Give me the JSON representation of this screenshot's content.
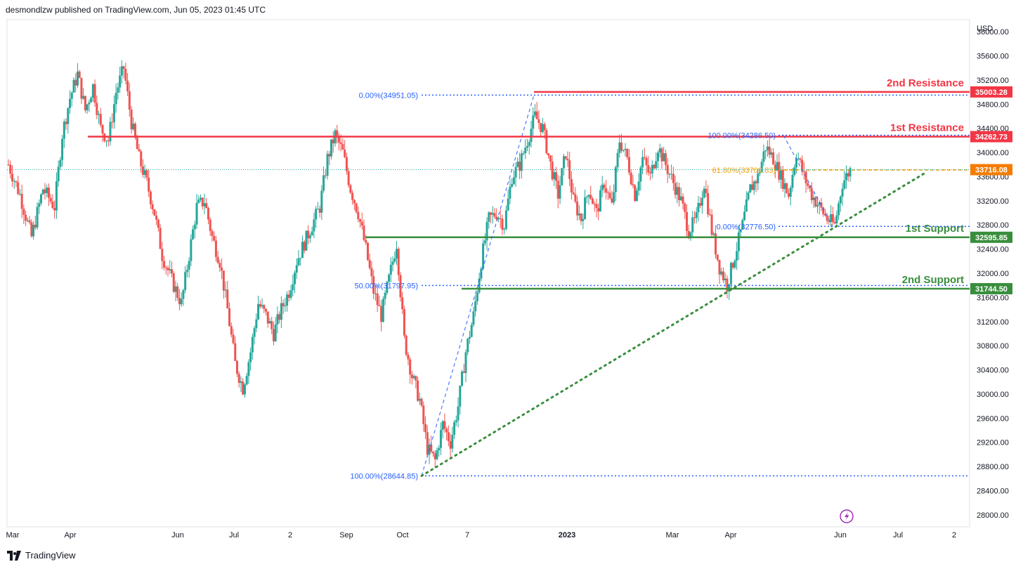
{
  "header": {
    "publisher": "desmondlzw published on TradingView.com, Jun 05, 2023 01:45 UTC"
  },
  "footer": {
    "brand": "TradingView"
  },
  "colors": {
    "up": "#26a69a",
    "down": "#ef5350",
    "resistance": "#f23645",
    "support": "#388e3c",
    "fib": "#2962ff",
    "fib_gold": "#f0a30a",
    "last_price": "#f57c00"
  },
  "chart_data": {
    "type": "candlestick",
    "currency": "USD",
    "y_range": [
      27800,
      36200
    ],
    "y_ticks": [
      36000,
      35600,
      35200,
      34800,
      34400,
      34000,
      33600,
      33200,
      32800,
      32400,
      32000,
      31600,
      31200,
      30800,
      30400,
      30000,
      29600,
      29200,
      28800,
      28400,
      28000
    ],
    "x_ticks": [
      "Mar",
      "Apr",
      "Jun",
      "Jul",
      "2",
      "Sep",
      "Oct",
      "7",
      "2023",
      "Mar",
      "Apr",
      "Jun",
      "Jul",
      "2"
    ],
    "levels": [
      {
        "label": "2nd Resistance",
        "value": 35003.28,
        "tag": "35003.28",
        "kind": "resistance"
      },
      {
        "label": "1st Resistance",
        "value": 34262.73,
        "tag": "34262.73",
        "kind": "resistance"
      },
      {
        "label": "1st Support",
        "value": 32595.85,
        "tag": "32595.85",
        "kind": "support"
      },
      {
        "label": "2nd Support",
        "value": 31744.5,
        "tag": "31744.50",
        "kind": "support"
      }
    ],
    "last_price": {
      "value": 33716.08,
      "tag": "33716.08"
    },
    "fib_labels": [
      {
        "text": "0.00%(34951.05)",
        "value": 34951.05
      },
      {
        "text": "50.00%(31797.95)",
        "value": 31797.95
      },
      {
        "text": "100.00%(28644.85)",
        "value": 28644.85
      },
      {
        "text": "100.00%(34286.50)",
        "value": 34286.5
      },
      {
        "text": "61.80%(33709.83)",
        "value": 33709.83
      },
      {
        "text": "0.00%(32776.50)",
        "value": 32776.5
      }
    ],
    "price_path": [
      [
        0,
        33800
      ],
      [
        3,
        33300
      ],
      [
        6,
        32600
      ],
      [
        9,
        33400
      ],
      [
        12,
        33100
      ],
      [
        14,
        34300
      ],
      [
        16,
        34900
      ],
      [
        18,
        35300
      ],
      [
        20,
        34700
      ],
      [
        22,
        35100
      ],
      [
        24,
        34400
      ],
      [
        26,
        34200
      ],
      [
        28,
        35000
      ],
      [
        30,
        35400
      ],
      [
        32,
        34500
      ],
      [
        34,
        33900
      ],
      [
        36,
        33500
      ],
      [
        38,
        33000
      ],
      [
        40,
        32300
      ],
      [
        43,
        31800
      ],
      [
        45,
        31500
      ],
      [
        47,
        32300
      ],
      [
        49,
        33100
      ],
      [
        51,
        33200
      ],
      [
        53,
        32600
      ],
      [
        55,
        32200
      ],
      [
        57,
        31400
      ],
      [
        59,
        30500
      ],
      [
        61,
        30100
      ],
      [
        63,
        30700
      ],
      [
        65,
        31500
      ],
      [
        67,
        31300
      ],
      [
        69,
        31000
      ],
      [
        71,
        31400
      ],
      [
        73,
        31700
      ],
      [
        75,
        32200
      ],
      [
        77,
        32500
      ],
      [
        79,
        32800
      ],
      [
        81,
        33100
      ],
      [
        83,
        33900
      ],
      [
        85,
        34300
      ],
      [
        87,
        34000
      ],
      [
        89,
        33400
      ],
      [
        91,
        33000
      ],
      [
        93,
        32400
      ],
      [
        95,
        31700
      ],
      [
        97,
        31300
      ],
      [
        99,
        31900
      ],
      [
        101,
        32500
      ],
      [
        103,
        30900
      ],
      [
        105,
        30300
      ],
      [
        107,
        29900
      ],
      [
        109,
        29100
      ],
      [
        111,
        28900
      ],
      [
        113,
        29500
      ],
      [
        115,
        29200
      ],
      [
        117,
        29800
      ],
      [
        119,
        30700
      ],
      [
        121,
        31300
      ],
      [
        123,
        32200
      ],
      [
        125,
        32900
      ],
      [
        127,
        33000
      ],
      [
        129,
        32800
      ],
      [
        131,
        33600
      ],
      [
        133,
        33800
      ],
      [
        135,
        34200
      ],
      [
        137,
        34600
      ],
      [
        139,
        34400
      ],
      [
        141,
        33800
      ],
      [
        143,
        33300
      ],
      [
        145,
        34000
      ],
      [
        147,
        33200
      ],
      [
        149,
        32900
      ],
      [
        151,
        33400
      ],
      [
        153,
        33000
      ],
      [
        155,
        33500
      ],
      [
        157,
        33100
      ],
      [
        159,
        34200
      ],
      [
        161,
        33900
      ],
      [
        163,
        33300
      ],
      [
        165,
        33900
      ],
      [
        167,
        33600
      ],
      [
        169,
        34100
      ],
      [
        171,
        33800
      ],
      [
        173,
        33500
      ],
      [
        175,
        33200
      ],
      [
        177,
        32700
      ],
      [
        179,
        32900
      ],
      [
        181,
        33500
      ],
      [
        183,
        32700
      ],
      [
        185,
        32100
      ],
      [
        187,
        31800
      ],
      [
        189,
        32300
      ],
      [
        191,
        32800
      ],
      [
        193,
        33400
      ],
      [
        195,
        33600
      ],
      [
        197,
        34100
      ],
      [
        199,
        33900
      ],
      [
        201,
        33600
      ],
      [
        203,
        33300
      ],
      [
        205,
        34000
      ],
      [
        207,
        33600
      ],
      [
        209,
        33300
      ],
      [
        211,
        33100
      ],
      [
        213,
        32900
      ],
      [
        215,
        32800
      ],
      [
        217,
        33500
      ],
      [
        219,
        33716
      ]
    ]
  }
}
